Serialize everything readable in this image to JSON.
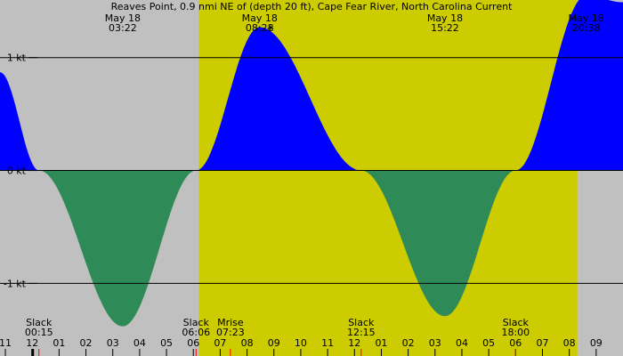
{
  "title": "Reaves Point, 0.9 nmi NE of (depth 20 ft), Cape Fear River, North Carolina Current",
  "colors": {
    "night": "#c0c0c0",
    "day": "#cccc00",
    "flood": "#0000ff",
    "ebb": "#2e8b57",
    "grid": "#000000",
    "moonrise_tick": "#ff0000"
  },
  "chart_data": {
    "type": "area",
    "title": "Reaves Point, 0.9 nmi NE of (depth 20 ft), Cape Fear River, North Carolina Current",
    "xlabel": "",
    "ylabel": "",
    "units": "kt",
    "x_range_hours": [
      -1.2,
      22.0
    ],
    "ylim": [
      -1.58,
      1.51
    ],
    "y_ticks": [
      {
        "value": 1,
        "label": "1 kt"
      },
      {
        "value": 0,
        "label": "0 kt"
      },
      {
        "value": -1,
        "label": "-1 kt"
      }
    ],
    "series": [
      {
        "x": [
          -1.2,
          0.25,
          3.37,
          6.1,
          8.47,
          12.25,
          15.37,
          18.0,
          20.63,
          22.0
        ],
        "y": [
          0.87,
          0.0,
          -1.38,
          0.0,
          1.27,
          0.0,
          -1.29,
          0.0,
          1.55,
          1.49
        ]
      }
    ],
    "peak_labels": [
      {
        "hour": 3.37,
        "date": "May 18",
        "time": "03:22"
      },
      {
        "hour": 8.47,
        "date": "May 18",
        "time": "08:28"
      },
      {
        "hour": 15.37,
        "date": "May 18",
        "time": "15:22"
      },
      {
        "hour": 20.63,
        "date": "May 18",
        "time": "20:38"
      }
    ],
    "event_labels": [
      {
        "hour": 0.25,
        "name": "Slack",
        "time": "00:15"
      },
      {
        "hour": 6.1,
        "name": "Slack",
        "time": "06:06"
      },
      {
        "hour": 7.38,
        "name": "Mrise",
        "time": "07:23"
      },
      {
        "hour": 12.25,
        "name": "Slack",
        "time": "12:15"
      },
      {
        "hour": 18.0,
        "name": "Slack",
        "time": "18:00"
      }
    ],
    "x_tick_labels": [
      {
        "hour": -1,
        "label": "11"
      },
      {
        "hour": 0,
        "label": "12"
      },
      {
        "hour": 1,
        "label": "01"
      },
      {
        "hour": 2,
        "label": "02"
      },
      {
        "hour": 3,
        "label": "03"
      },
      {
        "hour": 4,
        "label": "04"
      },
      {
        "hour": 5,
        "label": "05"
      },
      {
        "hour": 6,
        "label": "06"
      },
      {
        "hour": 7,
        "label": "07"
      },
      {
        "hour": 8,
        "label": "08"
      },
      {
        "hour": 9,
        "label": "09"
      },
      {
        "hour": 10,
        "label": "10"
      },
      {
        "hour": 11,
        "label": "11"
      },
      {
        "hour": 12,
        "label": "12"
      },
      {
        "hour": 13,
        "label": "01"
      },
      {
        "hour": 14,
        "label": "02"
      },
      {
        "hour": 15,
        "label": "03"
      },
      {
        "hour": 16,
        "label": "04"
      },
      {
        "hour": 17,
        "label": "05"
      },
      {
        "hour": 18,
        "label": "06"
      },
      {
        "hour": 19,
        "label": "07"
      },
      {
        "hour": 20,
        "label": "08"
      },
      {
        "hour": 21,
        "label": "09"
      }
    ],
    "daylight": {
      "start_hour": 6.2,
      "end_hour": 20.3
    },
    "grid": true
  }
}
